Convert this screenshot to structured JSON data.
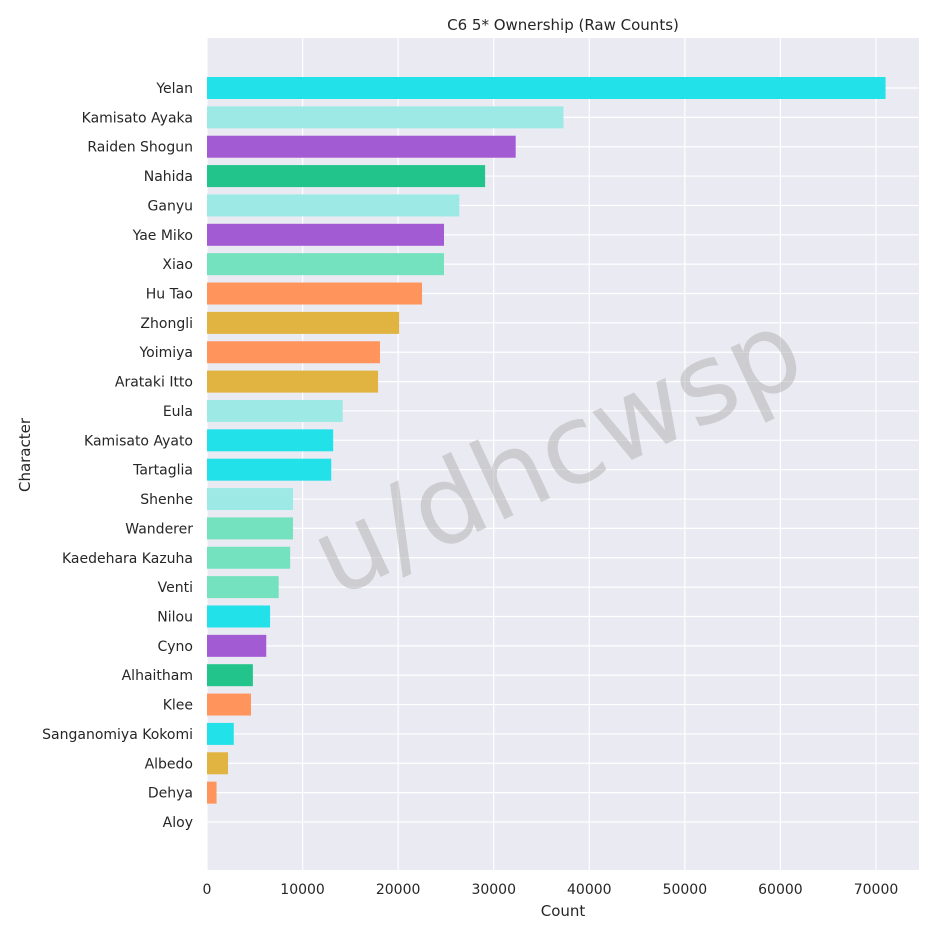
{
  "chart_data": {
    "type": "bar",
    "orientation": "horizontal",
    "title": "C6 5* Ownership (Raw Counts)",
    "xlabel": "Count",
    "ylabel": "Character",
    "xlim": [
      0,
      74500
    ],
    "xticks": [
      0,
      10000,
      20000,
      30000,
      40000,
      50000,
      60000,
      70000
    ],
    "xtick_labels": [
      "0",
      "10000",
      "20000",
      "30000",
      "40000",
      "50000",
      "60000",
      "70000"
    ],
    "grid": true,
    "background": "#eaeaf2",
    "watermark": "u/dhcwsp",
    "categories": [
      "Yelan",
      "Kamisato Ayaka",
      "Raiden Shogun",
      "Nahida",
      "Ganyu",
      "Yae Miko",
      "Xiao",
      "Hu Tao",
      "Zhongli",
      "Yoimiya",
      "Arataki Itto",
      "Eula",
      "Kamisato Ayato",
      "Tartaglia",
      "Shenhe",
      "Wanderer",
      "Kaedehara Kazuha",
      "Venti",
      "Nilou",
      "Cyno",
      "Alhaitham",
      "Klee",
      "Sanganomiya Kokomi",
      "Albedo",
      "Dehya",
      "Aloy"
    ],
    "values": [
      71000,
      37300,
      32300,
      29100,
      26400,
      24800,
      24800,
      22500,
      20100,
      18100,
      17900,
      14200,
      13200,
      13000,
      9000,
      9000,
      8700,
      7500,
      6600,
      6200,
      4800,
      4600,
      2800,
      2200,
      1000,
      0
    ],
    "colors": [
      "#22e1e8",
      "#9de9e6",
      "#a35bd3",
      "#22c48b",
      "#9de9e6",
      "#a35bd3",
      "#74e2bf",
      "#ff955c",
      "#e1b340",
      "#ff955c",
      "#e1b340",
      "#9de9e6",
      "#22e1e8",
      "#22e1e8",
      "#9de9e6",
      "#74e2bf",
      "#74e2bf",
      "#74e2bf",
      "#22e1e8",
      "#a35bd3",
      "#22c48b",
      "#ff955c",
      "#22e1e8",
      "#e1b340",
      "#ff955c",
      "#a35bd3"
    ]
  }
}
